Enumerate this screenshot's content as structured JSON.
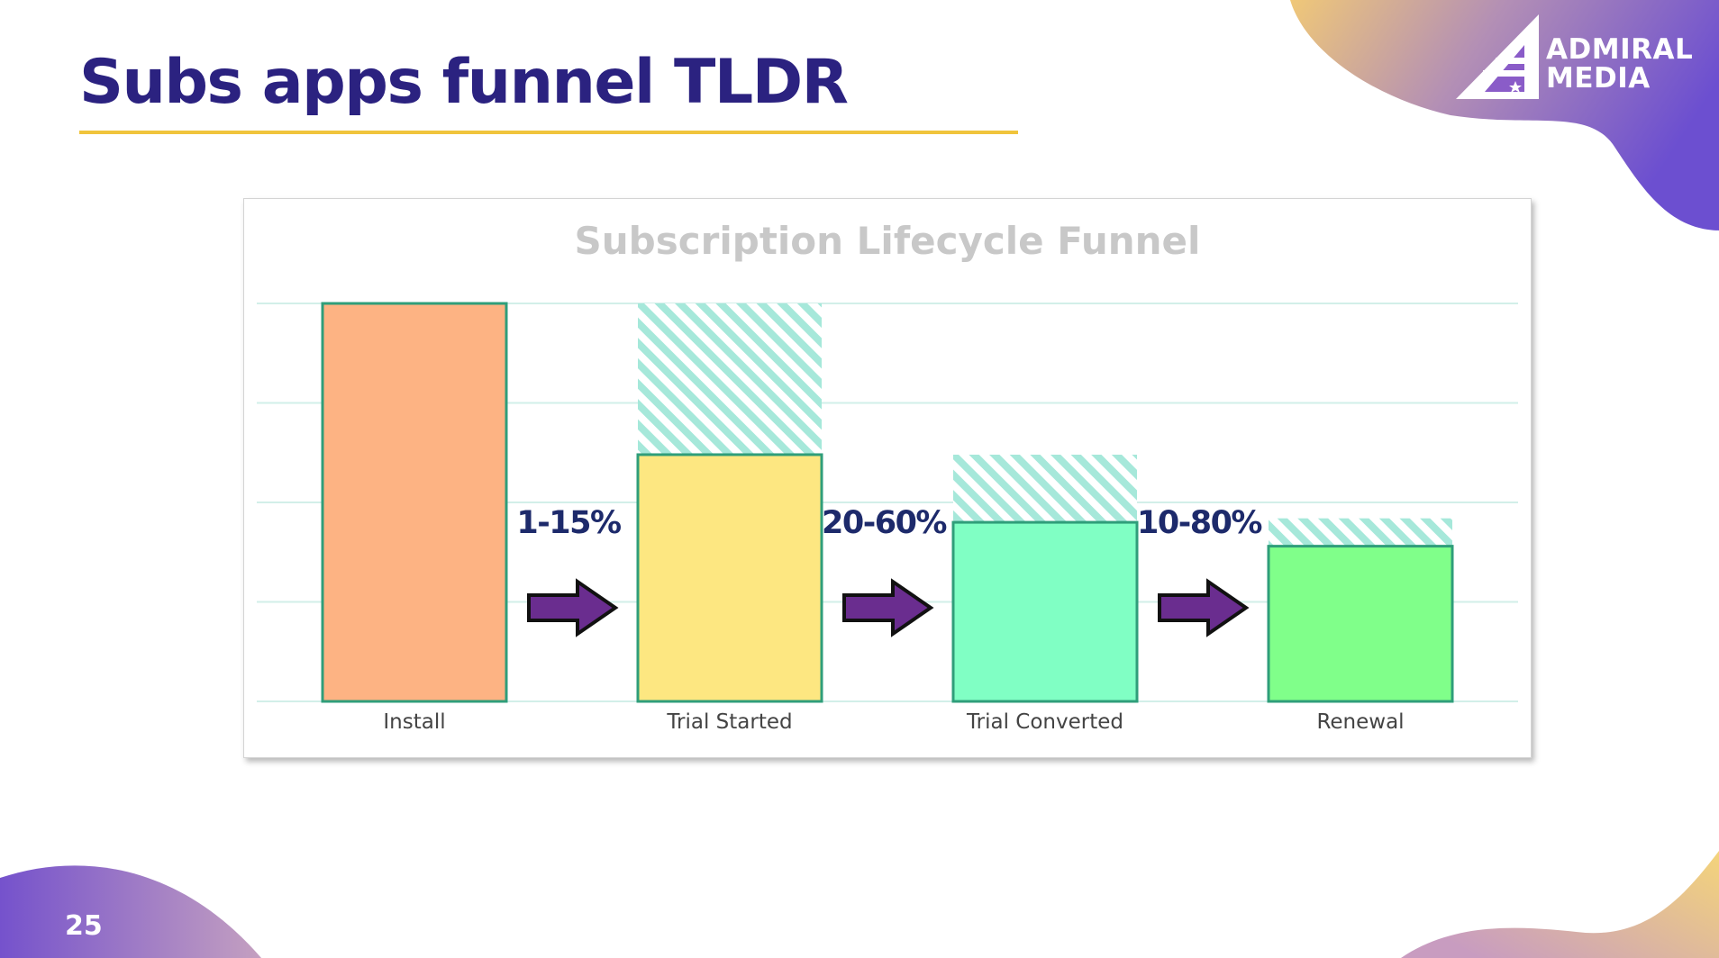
{
  "slide": {
    "title": "Subs apps funnel TLDR",
    "page_number": "25",
    "logo": {
      "line1": "ADMIRAL",
      "line2": "MEDIA",
      "icon": "admiral-flag-triangle-icon"
    },
    "colors": {
      "title": "#2b2280",
      "underline": "#f0c43c",
      "blob_purple": "#7758cc",
      "blob_gold": "#f0c878"
    }
  },
  "chart_data": {
    "type": "bar",
    "title": "Subscription Lifecycle Funnel",
    "categories": [
      "Install",
      "Trial Started",
      "Trial Converted",
      "Renewal"
    ],
    "values": [
      100,
      62,
      45,
      39
    ],
    "potential_values": [
      100,
      100,
      62,
      46
    ],
    "ylim": [
      0,
      100
    ],
    "grid": true,
    "bar_colors": [
      "#fdb383",
      "#fde781",
      "#80ffc4",
      "#80ff8a"
    ],
    "hatch_color": "#a6e8da",
    "conversion_rates": [
      "1-15%",
      "20-60%",
      "10-80%"
    ],
    "arrow_color": "#6a2d8f"
  }
}
